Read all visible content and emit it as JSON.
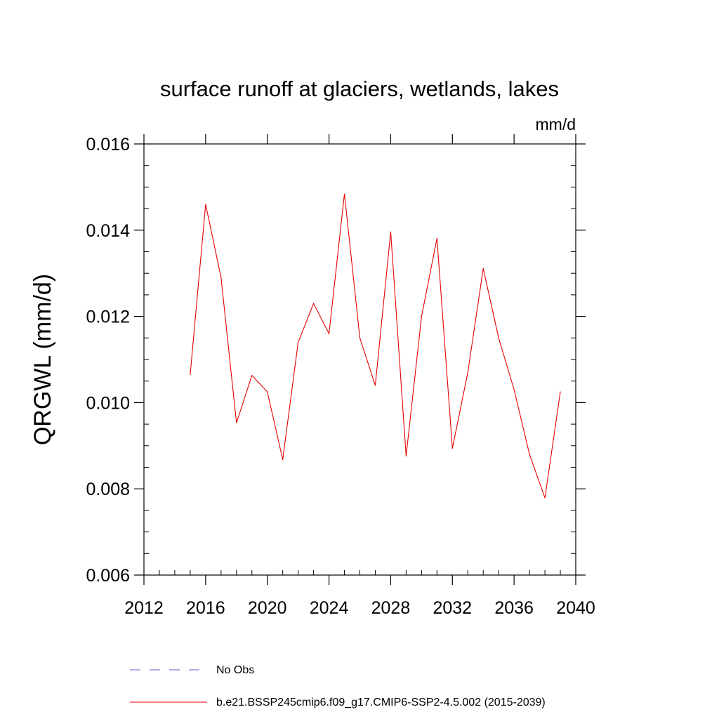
{
  "chart_data": {
    "type": "line",
    "title": "surface runoff at glaciers, wetlands, lakes",
    "units_label": "mm/d",
    "ylabel": "QRGWL  (mm/d)",
    "xlabel": "",
    "xlim": [
      2012,
      2040
    ],
    "ylim": [
      0.006,
      0.016
    ],
    "x_ticks": [
      2012,
      2016,
      2020,
      2024,
      2028,
      2032,
      2036,
      2040
    ],
    "x_tick_labels": [
      "2012",
      "2016",
      "2020",
      "2024",
      "2028",
      "2032",
      "2036",
      "2040"
    ],
    "y_ticks": [
      0.006,
      0.008,
      0.01,
      0.012,
      0.014,
      0.016
    ],
    "y_tick_labels": [
      "0.006",
      "0.008",
      "0.010",
      "0.012",
      "0.014",
      "0.016"
    ],
    "grid": false,
    "series": [
      {
        "name": "b.e21.BSSP245cmip6.f09_g17.CMIP6-SSP2-4.5.002 (2015-2039)",
        "color": "#e60000",
        "style": "solid",
        "x": [
          2015,
          2016,
          2017,
          2018,
          2019,
          2020,
          2021,
          2022,
          2023,
          2024,
          2025,
          2026,
          2027,
          2028,
          2029,
          2030,
          2031,
          2032,
          2033,
          2034,
          2035,
          2036,
          2037,
          2038,
          2039
        ],
        "values": [
          0.01065,
          0.0146,
          0.0129,
          0.00953,
          0.01063,
          0.01025,
          0.00868,
          0.0114,
          0.0123,
          0.0116,
          0.01484,
          0.0115,
          0.0104,
          0.01396,
          0.00876,
          0.012,
          0.01381,
          0.00894,
          0.0107,
          0.01311,
          0.0115,
          0.0103,
          0.0088,
          0.00779,
          0.01025
        ]
      }
    ],
    "legend": {
      "position": "bottom-left",
      "entries": [
        {
          "label": "No Obs",
          "color": "#6a5acd",
          "style": "dashed"
        },
        {
          "label": "b.e21.BSSP245cmip6.f09_g17.CMIP6-SSP2-4.5.002 (2015-2039)",
          "color": "#e60000",
          "style": "solid"
        }
      ]
    }
  }
}
